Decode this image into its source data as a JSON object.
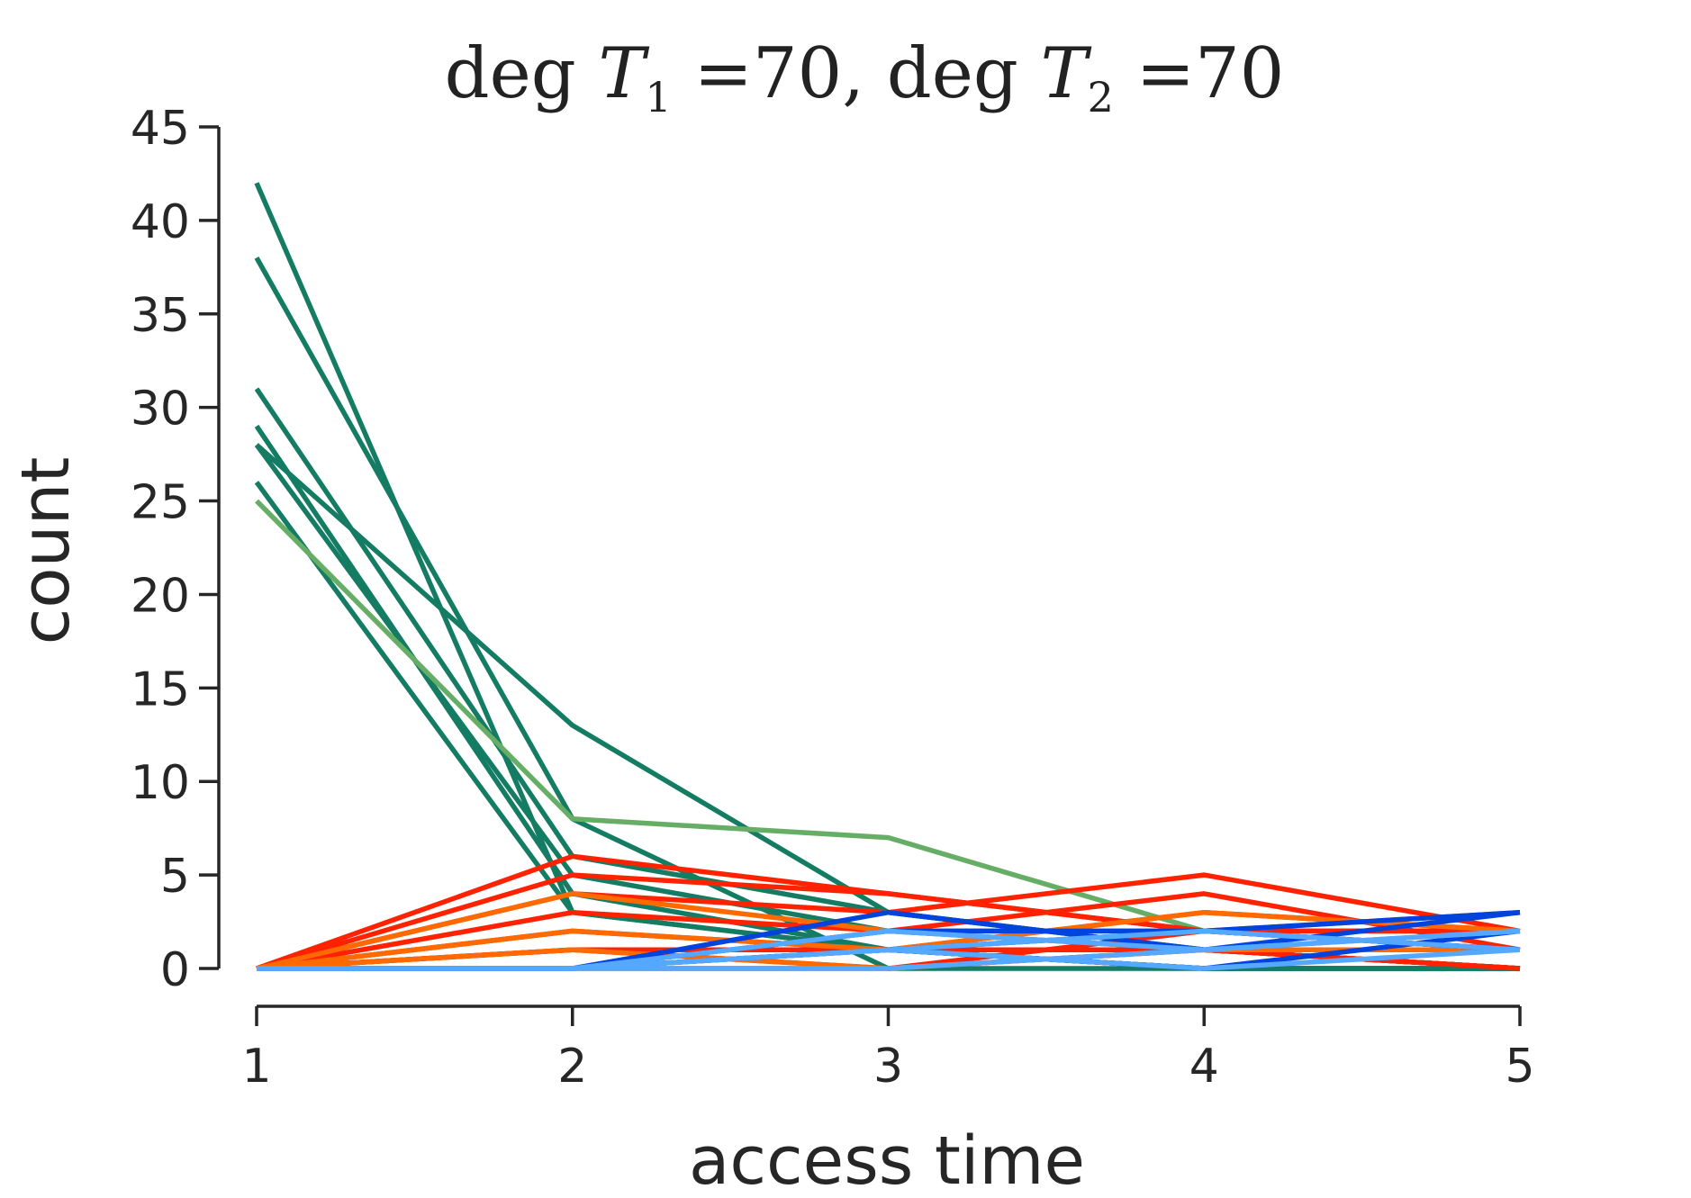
{
  "chart_data": {
    "type": "line",
    "title": {
      "text": "deg T1 =70, deg T2 =70",
      "parts": [
        "deg ",
        "T",
        "1",
        " =70, deg ",
        "T",
        "2",
        " =70"
      ]
    },
    "xlabel": "access time",
    "ylabel": "count",
    "x": [
      1,
      2,
      3,
      4,
      5
    ],
    "xlim": [
      1,
      5
    ],
    "ylim": [
      0,
      45
    ],
    "xticks": [
      1,
      2,
      3,
      4,
      5
    ],
    "yticks": [
      0,
      5,
      10,
      15,
      20,
      25,
      30,
      35,
      40,
      45
    ],
    "grid": false,
    "legend": "none",
    "colors": {
      "teal": "#137c63",
      "light_green": "#66ad66",
      "red": "#ff2200",
      "orange": "#ff6a00",
      "blue": "#0044dd",
      "light_blue": "#55a8ff"
    },
    "series": [
      {
        "color": "teal",
        "values": [
          42,
          3,
          1,
          0,
          0
        ]
      },
      {
        "color": "teal",
        "values": [
          38,
          8,
          0,
          0,
          0
        ]
      },
      {
        "color": "teal",
        "values": [
          31,
          6,
          3,
          1,
          0
        ]
      },
      {
        "color": "teal",
        "values": [
          29,
          4,
          1,
          0,
          0
        ]
      },
      {
        "color": "teal",
        "values": [
          28,
          13,
          3,
          1,
          0
        ]
      },
      {
        "color": "teal",
        "values": [
          28,
          5,
          2,
          1,
          0
        ]
      },
      {
        "color": "teal",
        "values": [
          26,
          3,
          1,
          0,
          0
        ]
      },
      {
        "color": "light_green",
        "values": [
          25,
          8,
          7,
          2,
          1
        ]
      },
      {
        "color": "red",
        "values": [
          0,
          6,
          4,
          2,
          2
        ]
      },
      {
        "color": "red",
        "values": [
          0,
          5,
          4,
          2,
          2
        ]
      },
      {
        "color": "red",
        "values": [
          0,
          4,
          3,
          5,
          2
        ]
      },
      {
        "color": "red",
        "values": [
          0,
          3,
          2,
          4,
          1
        ]
      },
      {
        "color": "red",
        "values": [
          0,
          2,
          1,
          3,
          2
        ]
      },
      {
        "color": "red",
        "values": [
          0,
          1,
          0,
          2,
          1
        ]
      },
      {
        "color": "red",
        "values": [
          0,
          1,
          1,
          1,
          0
        ]
      },
      {
        "color": "red",
        "values": [
          0,
          0,
          0,
          1,
          0
        ]
      },
      {
        "color": "orange",
        "values": [
          0,
          4,
          2,
          2,
          3
        ]
      },
      {
        "color": "orange",
        "values": [
          0,
          2,
          1,
          3,
          2
        ]
      },
      {
        "color": "orange",
        "values": [
          0,
          1,
          0,
          1,
          1
        ]
      },
      {
        "color": "blue",
        "values": [
          0,
          0,
          3,
          1,
          3
        ]
      },
      {
        "color": "blue",
        "values": [
          0,
          0,
          2,
          2,
          3
        ]
      },
      {
        "color": "blue",
        "values": [
          0,
          0,
          1,
          2,
          1
        ]
      },
      {
        "color": "blue",
        "values": [
          0,
          0,
          1,
          0,
          2
        ]
      },
      {
        "color": "light_blue",
        "values": [
          0,
          0,
          2,
          1,
          2
        ]
      },
      {
        "color": "light_blue",
        "values": [
          0,
          0,
          1,
          2,
          1
        ]
      },
      {
        "color": "light_blue",
        "values": [
          0,
          0,
          0,
          1,
          2
        ]
      },
      {
        "color": "light_blue",
        "values": [
          0,
          0,
          1,
          0,
          1
        ]
      }
    ]
  }
}
